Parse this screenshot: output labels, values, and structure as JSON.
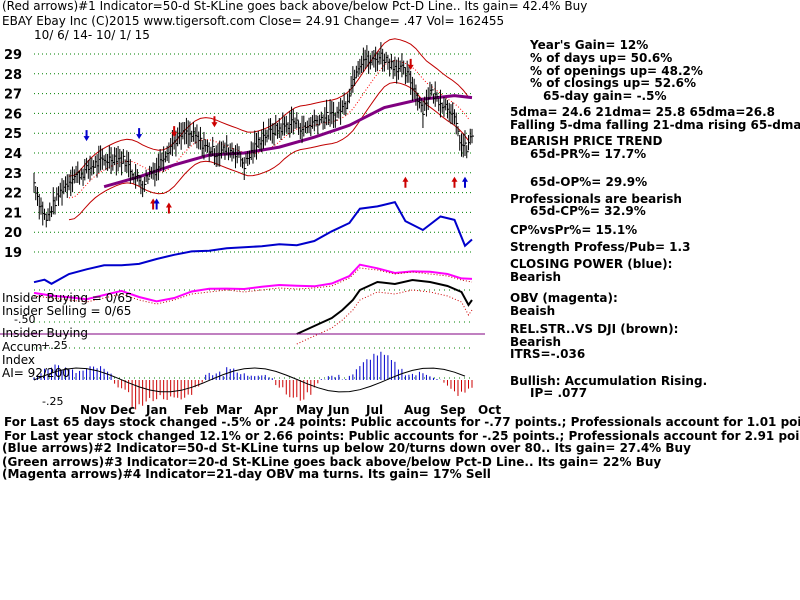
{
  "header": {
    "line1": "(Red arrows)#1 Indicator=50-d St-KLine goes back above/below Pct-D Line.. Its gain= 42.4% Buy",
    "line2": "EBAY   Ebay Inc  (C)2015 www.tigersoft.com      Close=  24.91  Change= .47 Vol= 162455",
    "line3": "10/ 6/ 14-  10/ 1/ 15"
  },
  "right_panel": [
    "Year's Gain= 12%",
    "% of days up= 50.6%",
    "% of openings up= 48.2%",
    "% of closings up= 52.6%",
    "65-day gain= -.5%",
    "5dma= 24.6 21dma= 25.8 65dma=26.8",
    "Falling 5-dma falling 21-dma rising 65-dma",
    "BEARISH PRICE TREND",
    "65d-PR%= 17.7%",
    "65d-OP%= 29.9%",
    "Professionals are bearish",
    "65d-CP%= 32.9%",
    "CP%vsPr%=  15.1%",
    "Strength Profess/Pub= 1.3",
    "CLOSING POWER (blue):",
    "Bearish",
    "OBV (magenta):",
    "Beaish",
    "REL.STR..VS DJI (brown):",
    "Bearish",
    "ITRS=-.036",
    "Bullish: Accumulation Rising.",
    "IP=  .077"
  ],
  "left_labels": {
    "insider_buying_1": "Insider Buying = 0/65",
    "insider_selling": "Insider Selling = 0/65",
    "minus50": "-.50",
    "insider_buying_2": "Insider Buying",
    "accum": "Accum",
    "plus25": "+.25",
    "index": "Index",
    "ai": "AI= 92/200",
    "minus25": "-.25"
  },
  "footer": [
    "For Last 65 days stock changed -.5% or  .24 points:  Public accounts for -.77 points.;  Professionals account for  1.01 points.",
    "For Last year stock changed  12.1% or  2.66 points:  Public accounts for -.25 points.;  Professionals account for  2.91 points.",
    "(Blue arrows)#2 Indicator=50-d St-KLine turns up below 20/turns down over 80.. Its gain= 27.4% Buy",
    "(Green arrows)#3 Indicator=20-d St-KLine goes back above/below Pct-D Line.. Its gain= 22% Buy",
    "(Magenta arrows)#4 Indicator=21-day OBV ma turns. Its gain= 17% Sell"
  ],
  "colors": {
    "price": "#000000",
    "band": "#c00000",
    "ma65": "#800080",
    "ma21": "#ff0000",
    "grid": "#008000",
    "closing_power": "#0000cc",
    "obv": "#ff00ff",
    "rel_strength": "#000000",
    "accum_pos": "#0000cc",
    "accum_neg": "#cc0000",
    "divider": "#800080"
  },
  "chart_data": {
    "type": "line",
    "title": "EBAY Ebay Inc",
    "period": "10/ 6/ 14- 10/ 1/ 15",
    "y_ticks": [
      19,
      20,
      21,
      22,
      23,
      24,
      25,
      26,
      27,
      28,
      29
    ],
    "ylim": [
      19,
      29
    ],
    "x_months": [
      "Nov",
      "Dec",
      "Jan",
      "Feb",
      "Mar",
      "Apr",
      "May",
      "Jun",
      "Jul",
      "Aug",
      "Sep",
      "Oct"
    ],
    "close_series": [
      {
        "t": 0,
        "v": 22.5
      },
      {
        "t": 3,
        "v": 21.5
      },
      {
        "t": 7,
        "v": 20.6
      },
      {
        "t": 10,
        "v": 21.2
      },
      {
        "t": 16,
        "v": 22.2
      },
      {
        "t": 22,
        "v": 22.8
      },
      {
        "t": 28,
        "v": 23.0
      },
      {
        "t": 34,
        "v": 23.4
      },
      {
        "t": 40,
        "v": 23.6
      },
      {
        "t": 46,
        "v": 23.8
      },
      {
        "t": 52,
        "v": 23.6
      },
      {
        "t": 58,
        "v": 22.8
      },
      {
        "t": 62,
        "v": 22.4
      },
      {
        "t": 66,
        "v": 23.0
      },
      {
        "t": 70,
        "v": 23.2
      },
      {
        "t": 74,
        "v": 23.9
      },
      {
        "t": 80,
        "v": 24.6
      },
      {
        "t": 86,
        "v": 25.0
      },
      {
        "t": 92,
        "v": 24.8
      },
      {
        "t": 98,
        "v": 24.3
      },
      {
        "t": 104,
        "v": 24.0
      },
      {
        "t": 110,
        "v": 24.2
      },
      {
        "t": 116,
        "v": 24.0
      },
      {
        "t": 120,
        "v": 23.4
      },
      {
        "t": 124,
        "v": 24.0
      },
      {
        "t": 130,
        "v": 24.8
      },
      {
        "t": 136,
        "v": 25.1
      },
      {
        "t": 142,
        "v": 25.3
      },
      {
        "t": 148,
        "v": 25.6
      },
      {
        "t": 154,
        "v": 25.2
      },
      {
        "t": 160,
        "v": 25.6
      },
      {
        "t": 166,
        "v": 25.8
      },
      {
        "t": 172,
        "v": 25.9
      },
      {
        "t": 178,
        "v": 26.5
      },
      {
        "t": 184,
        "v": 28.3
      },
      {
        "t": 188,
        "v": 28.8
      },
      {
        "t": 192,
        "v": 28.6
      },
      {
        "t": 198,
        "v": 28.9
      },
      {
        "t": 204,
        "v": 28.5
      },
      {
        "t": 210,
        "v": 28.2
      },
      {
        "t": 214,
        "v": 27.8
      },
      {
        "t": 218,
        "v": 27.0
      },
      {
        "t": 222,
        "v": 26.2
      },
      {
        "t": 226,
        "v": 27.1
      },
      {
        "t": 232,
        "v": 26.6
      },
      {
        "t": 238,
        "v": 26.2
      },
      {
        "t": 244,
        "v": 24.4
      },
      {
        "t": 247,
        "v": 24.2
      },
      {
        "t": 250,
        "v": 24.91
      }
    ],
    "ma65_series": [
      {
        "t": 40,
        "v": 22.3
      },
      {
        "t": 60,
        "v": 22.8
      },
      {
        "t": 80,
        "v": 23.4
      },
      {
        "t": 100,
        "v": 23.9
      },
      {
        "t": 120,
        "v": 24.0
      },
      {
        "t": 140,
        "v": 24.3
      },
      {
        "t": 160,
        "v": 24.8
      },
      {
        "t": 180,
        "v": 25.4
      },
      {
        "t": 200,
        "v": 26.3
      },
      {
        "t": 220,
        "v": 26.7
      },
      {
        "t": 240,
        "v": 26.9
      },
      {
        "t": 250,
        "v": 26.8
      }
    ],
    "t_range": [
      0,
      250
    ]
  }
}
